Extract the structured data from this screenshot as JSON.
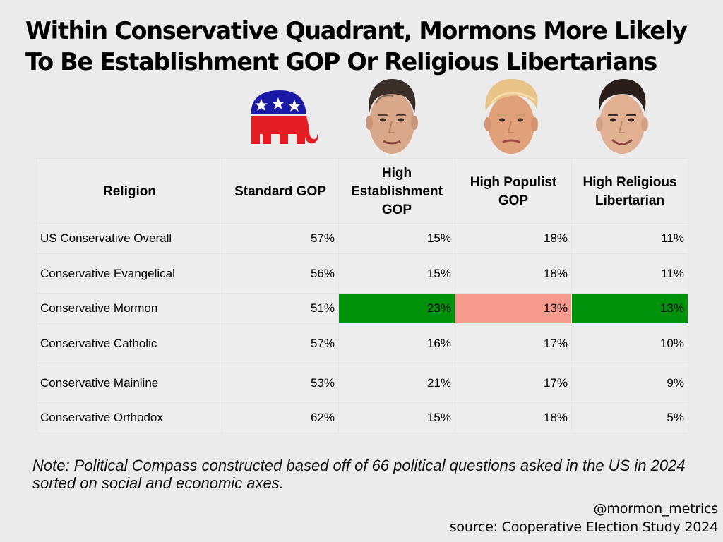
{
  "title": {
    "line1": "Within Conservative Quadrant, Mormons More Likely",
    "line2": "To Be Establishment GOP Or Religious Libertarians"
  },
  "icons": [
    "gop-elephant-icon",
    "romney-portrait-icon",
    "trump-portrait-icon",
    "lee-portrait-icon"
  ],
  "colors": {
    "background": "#ebebeb",
    "highlight_green": "#00920a",
    "highlight_red": "#f59a8c",
    "gop_red": "#e41c23",
    "gop_blue": "#1a1aa6"
  },
  "chart_data": {
    "type": "table",
    "title": "Within Conservative Quadrant, Mormons More Likely To Be Establishment GOP Or Religious Libertarians",
    "columns": [
      {
        "line1": "Religion",
        "line2": "",
        "line3": ""
      },
      {
        "line1": "Standard GOP",
        "line2": "",
        "line3": ""
      },
      {
        "line1": "High",
        "line2": "Establishment",
        "line3": "GOP"
      },
      {
        "line1": "High Populist",
        "line2": "GOP",
        "line3": ""
      },
      {
        "line1": "High Religious",
        "line2": "Libertarian",
        "line3": ""
      }
    ],
    "rows": [
      {
        "religion": "US Conservative Overall",
        "values": [
          "57%",
          "15%",
          "18%",
          "11%"
        ],
        "highlights": [
          "",
          "",
          "",
          ""
        ]
      },
      {
        "religion": "Conservative Evangelical",
        "values": [
          "56%",
          "15%",
          "18%",
          "11%"
        ],
        "highlights": [
          "",
          "",
          "",
          ""
        ]
      },
      {
        "religion": "Conservative Mormon",
        "values": [
          "51%",
          "23%",
          "13%",
          "13%"
        ],
        "highlights": [
          "",
          "green",
          "red",
          "green"
        ]
      },
      {
        "religion": "Conservative Catholic",
        "values": [
          "57%",
          "16%",
          "17%",
          "10%"
        ],
        "highlights": [
          "",
          "",
          "",
          ""
        ]
      },
      {
        "religion": "Conservative Mainline",
        "values": [
          "53%",
          "21%",
          "17%",
          "9%"
        ],
        "highlights": [
          "",
          "",
          "",
          ""
        ]
      },
      {
        "religion": "Conservative Orthodox",
        "values": [
          "62%",
          "15%",
          "18%",
          "5%"
        ],
        "highlights": [
          "",
          "",
          "",
          ""
        ]
      }
    ]
  },
  "note": "Note: Political Compass constructed based off of 66 political questions asked in the US in 2024 sorted on social and economic axes.",
  "handle": "@mormon_metrics",
  "source": "source: Cooperative Election Study 2024"
}
